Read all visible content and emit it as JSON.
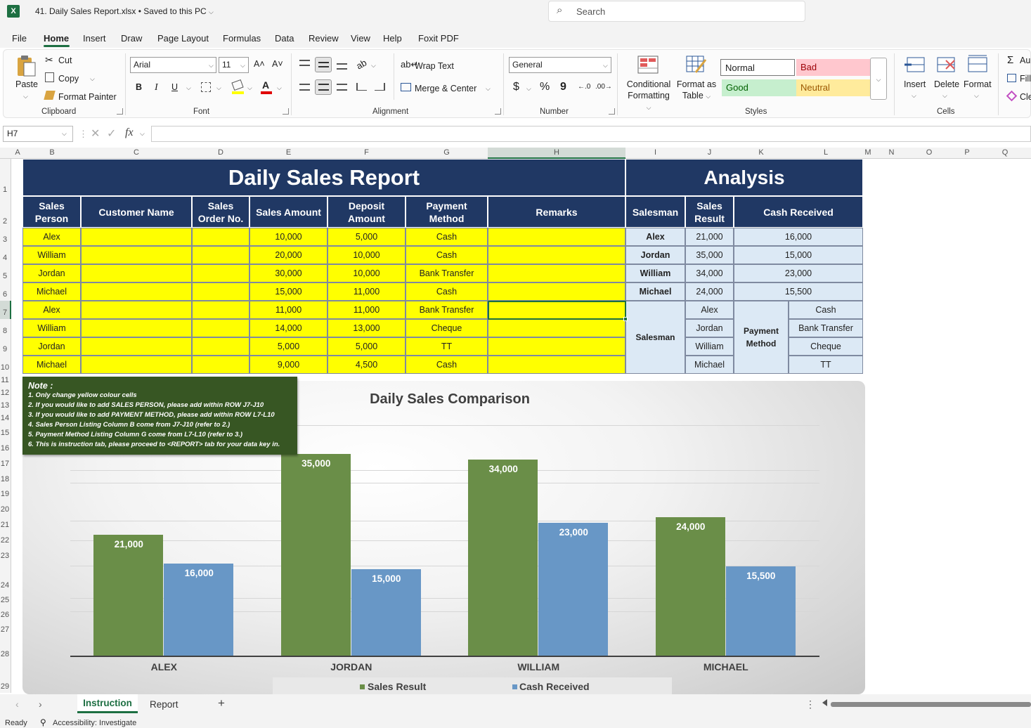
{
  "app": {
    "logo": "X",
    "title": "41. Daily Sales Report.xlsx • Saved to this PC",
    "title_caret": "⌵"
  },
  "search": {
    "placeholder": "Search",
    "icon": "search-icon"
  },
  "menu": [
    "File",
    "Home",
    "Insert",
    "Draw",
    "Page Layout",
    "Formulas",
    "Data",
    "Review",
    "View",
    "Help",
    "Foxit PDF"
  ],
  "ribbon": {
    "clipboard": {
      "paste": "Paste",
      "cut": "Cut",
      "copy": "Copy",
      "format_painter": "Format Painter",
      "group": "Clipboard"
    },
    "font": {
      "family": "Arial",
      "size": "11",
      "bold": "B",
      "italic": "I",
      "underline": "U",
      "grow": "A˄",
      "shrink": "A˅",
      "group": "Font"
    },
    "alignment": {
      "wrap": "Wrap Text",
      "merge": "Merge & Center",
      "group": "Alignment"
    },
    "number": {
      "format": "General",
      "currency": "$",
      "percent": "%",
      "comma": "9",
      "inc_decimal": "←.0",
      "dec_decimal": ".00→",
      "group": "Number"
    },
    "styles": {
      "cond1": "Conditional",
      "cond2": "Formatting",
      "table1": "Format as",
      "table2": "Table",
      "normal": "Normal",
      "bad": "Bad",
      "good": "Good",
      "neutral": "Neutral",
      "group": "Styles"
    },
    "cells": {
      "insert": "Insert",
      "delete": "Delete",
      "format": "Format",
      "group": "Cells"
    },
    "editing": {
      "autosum": "Au",
      "fill": "Fill",
      "clear": "Cle"
    }
  },
  "formula_bar": {
    "name_box": "H7",
    "fx": "fx",
    "value": ""
  },
  "columns": [
    "A",
    "B",
    "C",
    "D",
    "E",
    "F",
    "G",
    "H",
    "I",
    "J",
    "K",
    "L",
    "M",
    "N",
    "O",
    "P",
    "Q"
  ],
  "rows": [
    "1",
    "2",
    "3",
    "4",
    "5",
    "6",
    "7",
    "8",
    "9",
    "10",
    "11",
    "12",
    "13",
    "14",
    "15",
    "16",
    "17",
    "18",
    "19",
    "20",
    "21",
    "22",
    "23",
    "24",
    "25",
    "26",
    "27",
    "28",
    "29"
  ],
  "report": {
    "title": "Daily Sales Report",
    "headers": [
      "Sales Person",
      "Customer Name",
      "Sales Order No.",
      "Sales Amount",
      "Deposit Amount",
      "Payment Method",
      "Remarks"
    ],
    "rows": [
      [
        "Alex",
        "",
        "",
        "10,000",
        "5,000",
        "Cash",
        ""
      ],
      [
        "William",
        "",
        "",
        "20,000",
        "10,000",
        "Cash",
        ""
      ],
      [
        "Jordan",
        "",
        "",
        "30,000",
        "10,000",
        "Bank Transfer",
        ""
      ],
      [
        "Michael",
        "",
        "",
        "15,000",
        "11,000",
        "Cash",
        ""
      ],
      [
        "Alex",
        "",
        "",
        "11,000",
        "11,000",
        "Bank Transfer",
        ""
      ],
      [
        "William",
        "",
        "",
        "14,000",
        "13,000",
        "Cheque",
        ""
      ],
      [
        "Jordan",
        "",
        "",
        "5,000",
        "5,000",
        "TT",
        ""
      ],
      [
        "Michael",
        "",
        "",
        "9,000",
        "4,500",
        "Cash",
        ""
      ]
    ]
  },
  "analysis": {
    "title": "Analysis",
    "headers": [
      "Salesman",
      "Sales Result",
      "Cash Received"
    ],
    "rows": [
      [
        "Alex",
        "21,000",
        "16,000"
      ],
      [
        "Jordan",
        "35,000",
        "15,000"
      ],
      [
        "William",
        "34,000",
        "23,000"
      ],
      [
        "Michael",
        "24,000",
        "15,500"
      ]
    ],
    "salesman_label": "Salesman",
    "salesmen": [
      "Alex",
      "Jordan",
      "William",
      "Michael"
    ],
    "payment_label": "Payment Method",
    "methods": [
      "Cash",
      "Bank Transfer",
      "Cheque",
      "TT"
    ]
  },
  "note": {
    "title": "Note :",
    "lines": [
      "1. Only change yellow colour cells",
      "2. If you would like to add SALES PERSON, please add within ROW J7-J10",
      "3. If you would like to add PAYMENT METHOD, please add within ROW L7-L10",
      "4. Sales Person Listing Column B come from J7-J10 (refer to 2.)",
      "5. Payment Method Listing Column G come from L7-L10 (refer to 3.)",
      "6. This is instruction tab, please proceed to <REPORT> tab for your data key in."
    ]
  },
  "chart_data": {
    "type": "bar",
    "title": "Daily Sales Comparison",
    "categories": [
      "ALEX",
      "JORDAN",
      "WILLIAM",
      "MICHAEL"
    ],
    "series": [
      {
        "name": "Sales Result",
        "values": [
          21000,
          35000,
          34000,
          24000
        ],
        "labels": [
          "21,000",
          "35,000",
          "34,000",
          "24,000"
        ],
        "color": "#6a8e48"
      },
      {
        "name": "Cash Received",
        "values": [
          16000,
          15000,
          23000,
          15500
        ],
        "labels": [
          "16,000",
          "15,000",
          "23,000",
          "15,500"
        ],
        "color": "#6897c6"
      }
    ],
    "ylim": [
      0,
      40000
    ],
    "grid": true,
    "legend": "bottom"
  },
  "sheets": {
    "tabs": [
      "Instruction",
      "Report"
    ],
    "active": "Instruction",
    "add": "+"
  },
  "status": {
    "ready": "Ready",
    "accessibility": "Accessibility: Investigate"
  },
  "colors": {
    "header": "#203864",
    "input": "#ffff00",
    "analysis": "#dce9f5",
    "note": "#375623",
    "excel": "#1d6f42"
  }
}
